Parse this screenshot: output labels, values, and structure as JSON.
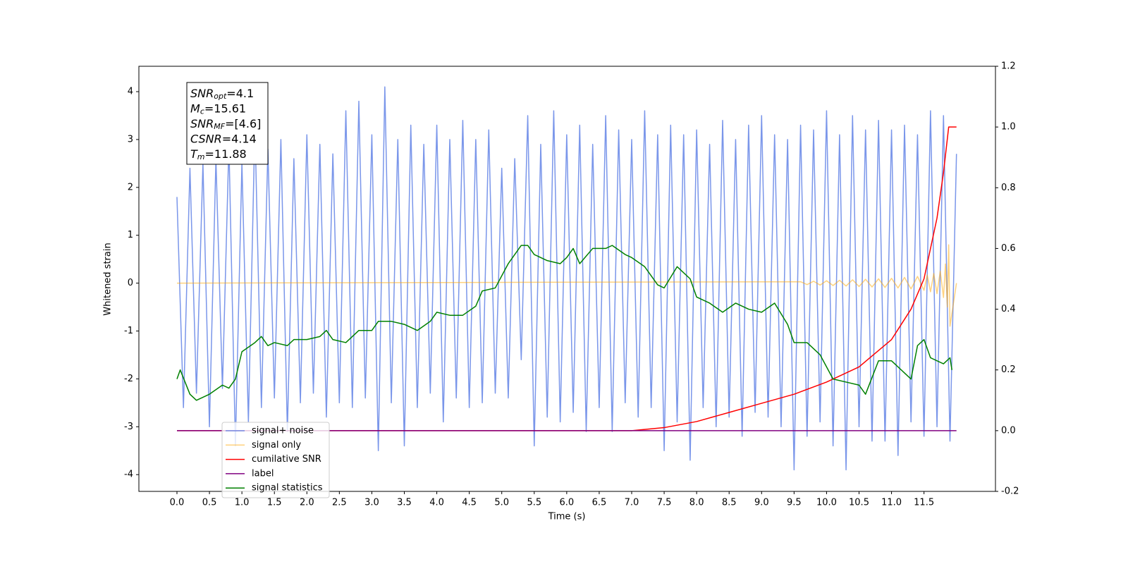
{
  "chart_data": {
    "type": "line",
    "xlabel": "Time (s)",
    "ylabel": "Whitened strain",
    "xlim": [
      -0.586,
      12.6
    ],
    "ylim": [
      -4.35,
      4.53
    ],
    "y2lim": [
      -0.2,
      1.2
    ],
    "xticks": [
      {
        "value": 0,
        "label": "0.0"
      },
      0.5,
      {
        "value": 1,
        "label": "1.0"
      },
      1.5,
      {
        "value": 2,
        "label": "2.0"
      },
      2.5,
      {
        "value": 3,
        "label": "3.0"
      },
      3.5,
      {
        "value": 4,
        "label": "4.0"
      },
      4.5,
      {
        "value": 5,
        "label": "5.0"
      },
      5.5,
      {
        "value": 6,
        "label": "6.0"
      },
      6.5,
      {
        "value": 7,
        "label": "7.0"
      },
      7.5,
      {
        "value": 8,
        "label": "8.0"
      },
      8.5,
      {
        "value": 9,
        "label": "9.0"
      },
      9.5,
      {
        "value": 10,
        "label": "10.0"
      },
      10.5,
      {
        "value": 11,
        "label": "11.0"
      },
      11.5
    ],
    "yticks": [
      -4,
      -3,
      -2,
      -1,
      0,
      1,
      2,
      3,
      4
    ],
    "y2ticks": [
      -0.2,
      {
        "value": 0,
        "label": "0.0"
      },
      0.2,
      0.4,
      0.6,
      0.8,
      {
        "value": 1,
        "label": "1.0"
      },
      1.2
    ],
    "legend": "lower left",
    "annotations": [
      {
        "name": "SNR",
        "sub": "opt",
        "rest": "=4.1"
      },
      {
        "name": "M",
        "sub": "c",
        "rest": "=15.61"
      },
      {
        "name": "SNR",
        "sub": "MF",
        "rest": "=[4.6]"
      },
      {
        "name": "CSNR",
        "sub": "",
        "rest": "=4.14"
      },
      {
        "name": "T",
        "sub": "m",
        "rest": "=11.88"
      }
    ],
    "series": [
      {
        "name": "signal+ noise",
        "color": "#4169e1",
        "alpha": 0.7,
        "x": [
          0,
          0.1,
          0.2,
          0.3,
          0.4,
          0.5,
          0.6,
          0.7,
          0.8,
          0.9,
          1,
          1.1,
          1.2,
          1.3,
          1.4,
          1.5,
          1.6,
          1.7,
          1.8,
          1.9,
          2,
          2.1,
          2.2,
          2.3,
          2.4,
          2.5,
          2.6,
          2.7,
          2.8,
          2.9,
          3,
          3.1,
          3.2,
          3.3,
          3.4,
          3.5,
          3.6,
          3.7,
          3.8,
          3.9,
          4,
          4.1,
          4.2,
          4.3,
          4.4,
          4.5,
          4.6,
          4.7,
          4.8,
          4.9,
          5,
          5.1,
          5.2,
          5.3,
          5.4,
          5.5,
          5.6,
          5.7,
          5.8,
          5.9,
          6,
          6.1,
          6.2,
          6.3,
          6.4,
          6.5,
          6.6,
          6.7,
          6.8,
          6.9,
          7,
          7.1,
          7.2,
          7.3,
          7.4,
          7.5,
          7.6,
          7.7,
          7.8,
          7.9,
          8,
          8.1,
          8.2,
          8.3,
          8.4,
          8.5,
          8.6,
          8.7,
          8.8,
          8.9,
          9,
          9.1,
          9.2,
          9.3,
          9.4,
          9.5,
          9.6,
          9.7,
          9.8,
          9.9,
          10,
          10.1,
          10.2,
          10.3,
          10.4,
          10.5,
          10.6,
          10.7,
          10.8,
          10.9,
          11,
          11.1,
          11.2,
          11.3,
          11.4,
          11.5,
          11.6,
          11.7,
          11.8,
          11.9,
          12
        ],
        "values": [
          1.8,
          -2.6,
          2.4,
          -2.3,
          2.5,
          -3.0,
          2.6,
          -2.2,
          2.9,
          -3.4,
          2.5,
          -2.9,
          3.3,
          -2.6,
          2.8,
          -2.4,
          3.0,
          -3.1,
          2.6,
          -2.5,
          3.1,
          -2.3,
          2.9,
          -2.8,
          2.7,
          -2.5,
          3.6,
          -2.6,
          3.8,
          -2.4,
          3.1,
          -3.5,
          4.1,
          -2.5,
          3.0,
          -3.4,
          3.3,
          -2.6,
          2.9,
          -2.3,
          3.3,
          -2.9,
          3.0,
          -2.4,
          3.4,
          -2.6,
          3.0,
          -2.5,
          3.2,
          -2.3,
          2.4,
          -2.4,
          2.6,
          -1.6,
          3.5,
          -3.4,
          2.9,
          -2.8,
          3.6,
          -2.9,
          3.1,
          -2.7,
          3.3,
          -3.1,
          2.9,
          -2.6,
          3.5,
          -3.1,
          3.2,
          -2.5,
          3.0,
          -2.8,
          3.6,
          -2.6,
          3.1,
          -3.5,
          3.3,
          -2.9,
          3.1,
          -3.7,
          3.2,
          -2.6,
          2.9,
          -3.0,
          3.4,
          -2.8,
          3.0,
          -3.2,
          3.3,
          -2.7,
          3.5,
          -2.8,
          3.1,
          -3.0,
          3.0,
          -3.9,
          3.3,
          -3.2,
          3.2,
          -2.9,
          3.6,
          -3.4,
          3.1,
          -3.9,
          3.5,
          -3.0,
          3.2,
          -3.3,
          3.4,
          -3.3,
          3.2,
          -3.6,
          3.3,
          -2.9,
          3.1,
          -3.2,
          3.6,
          -3.0,
          3.5,
          -3.3,
          2.7
        ]
      },
      {
        "name": "signal only",
        "color": "#ffa500",
        "alpha": 0.5,
        "x": [
          0,
          9.6,
          9.7,
          9.8,
          9.9,
          10,
          10.1,
          10.2,
          10.3,
          10.4,
          10.5,
          10.6,
          10.7,
          10.8,
          10.9,
          11,
          11.1,
          11.2,
          11.3,
          11.4,
          11.5,
          11.55,
          11.6,
          11.65,
          11.7,
          11.75,
          11.8,
          11.83,
          11.86,
          11.88,
          11.9,
          12
        ],
        "values": [
          0,
          0.03,
          -0.03,
          0.04,
          -0.04,
          0.05,
          -0.05,
          0.06,
          -0.06,
          0.07,
          -0.07,
          0.08,
          -0.08,
          0.09,
          -0.09,
          0.1,
          -0.1,
          0.12,
          -0.12,
          0.14,
          -0.15,
          0.17,
          -0.18,
          0.2,
          -0.22,
          0.25,
          -0.3,
          0.4,
          -0.5,
          0.8,
          -0.9,
          0
        ]
      },
      {
        "name": "cumilative SNR",
        "color": "#ff0000",
        "alpha": 1,
        "axis": "y2",
        "x": [
          0,
          7,
          7.5,
          8,
          8.5,
          9,
          9.5,
          10,
          10.5,
          11,
          11.3,
          11.5,
          11.7,
          11.8,
          11.88,
          12
        ],
        "values": [
          0,
          0,
          0.01,
          0.03,
          0.06,
          0.09,
          0.12,
          0.16,
          0.21,
          0.3,
          0.4,
          0.5,
          0.7,
          0.85,
          1,
          1
        ]
      },
      {
        "name": "label",
        "color": "#800080",
        "alpha": 1,
        "axis": "y2",
        "x": [
          0,
          12
        ],
        "values": [
          0,
          0
        ]
      },
      {
        "name": "signal statistics",
        "color": "#008000",
        "alpha": 1,
        "axis": "y2",
        "x": [
          0,
          0.05,
          0.2,
          0.3,
          0.5,
          0.7,
          0.8,
          0.9,
          1,
          1.2,
          1.3,
          1.4,
          1.5,
          1.7,
          1.8,
          2,
          2.2,
          2.3,
          2.4,
          2.6,
          2.8,
          3,
          3.1,
          3.3,
          3.5,
          3.7,
          3.9,
          4,
          4.2,
          4.4,
          4.6,
          4.7,
          4.9,
          5.1,
          5.3,
          5.4,
          5.5,
          5.7,
          5.9,
          6,
          6.1,
          6.2,
          6.4,
          6.6,
          6.7,
          6.9,
          7,
          7.2,
          7.4,
          7.5,
          7.7,
          7.9,
          8,
          8.2,
          8.4,
          8.6,
          8.8,
          9,
          9.2,
          9.4,
          9.5,
          9.7,
          9.9,
          10.1,
          10.3,
          10.5,
          10.6,
          10.8,
          11,
          11.2,
          11.3,
          11.4,
          11.5,
          11.6,
          11.8,
          11.9,
          11.93
        ],
        "values": [
          0.17,
          0.2,
          0.12,
          0.1,
          0.12,
          0.15,
          0.14,
          0.17,
          0.26,
          0.29,
          0.31,
          0.28,
          0.29,
          0.28,
          0.3,
          0.3,
          0.31,
          0.33,
          0.3,
          0.29,
          0.33,
          0.33,
          0.36,
          0.36,
          0.35,
          0.33,
          0.36,
          0.39,
          0.38,
          0.38,
          0.41,
          0.46,
          0.47,
          0.55,
          0.61,
          0.61,
          0.58,
          0.56,
          0.55,
          0.57,
          0.6,
          0.55,
          0.6,
          0.6,
          0.61,
          0.58,
          0.57,
          0.54,
          0.48,
          0.47,
          0.54,
          0.5,
          0.44,
          0.42,
          0.39,
          0.42,
          0.4,
          0.39,
          0.42,
          0.35,
          0.29,
          0.29,
          0.25,
          0.17,
          0.16,
          0.15,
          0.12,
          0.23,
          0.23,
          0.19,
          0.17,
          0.28,
          0.3,
          0.24,
          0.22,
          0.24,
          0.2
        ]
      }
    ]
  }
}
